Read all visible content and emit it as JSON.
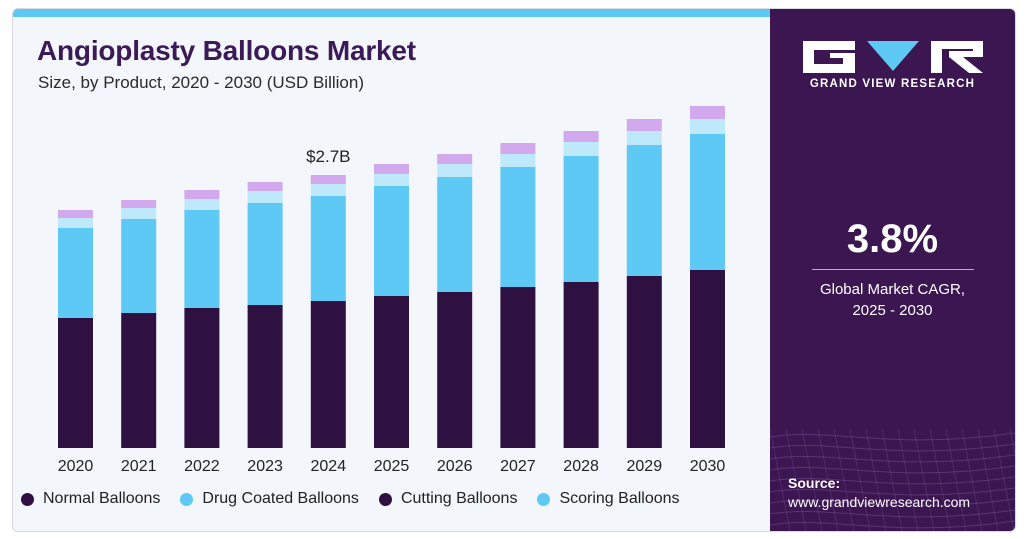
{
  "header": {
    "title": "Angioplasty Balloons Market",
    "subtitle": "Size, by Product, 2020 - 2030 (USD Billion)"
  },
  "brand": {
    "name": "GRAND VIEW RESEARCH"
  },
  "stat": {
    "value": "3.8%",
    "label_line1": "Global Market CAGR,",
    "label_line2": "2025 - 2030"
  },
  "source": {
    "label": "Source:",
    "url": "www.grandviewresearch.com"
  },
  "colors": {
    "normal": "#2e1141",
    "drug_coated": "#5ec9f4",
    "cutting": "#bde9fa",
    "scoring": "#d2a9ec",
    "sidebar": "#3b1650",
    "title": "#3a1a57"
  },
  "chart_data": {
    "type": "bar",
    "stacked": true,
    "title": "Angioplasty Balloons Market",
    "subtitle": "Size, by Product, 2020 - 2030 (USD Billion)",
    "categories": [
      "2020",
      "2021",
      "2022",
      "2023",
      "2024",
      "2025",
      "2026",
      "2027",
      "2028",
      "2029",
      "2030"
    ],
    "series": [
      {
        "name": "Normal Balloons",
        "color": "#2e1141",
        "values": [
          1.3,
          1.35,
          1.4,
          1.43,
          1.47,
          1.52,
          1.56,
          1.61,
          1.66,
          1.72,
          1.78
        ]
      },
      {
        "name": "Drug Coated Balloons",
        "color": "#5ec9f4",
        "values": [
          0.9,
          0.94,
          0.98,
          1.02,
          1.05,
          1.1,
          1.15,
          1.2,
          1.26,
          1.31,
          1.36
        ]
      },
      {
        "name": "Cutting Balloons",
        "color": "#bde9fa",
        "values": [
          0.1,
          0.11,
          0.11,
          0.12,
          0.12,
          0.12,
          0.13,
          0.13,
          0.14,
          0.14,
          0.15
        ]
      },
      {
        "name": "Scoring Balloons",
        "color": "#d2a9ec",
        "values": [
          0.08,
          0.08,
          0.09,
          0.09,
          0.09,
          0.1,
          0.1,
          0.11,
          0.11,
          0.12,
          0.13
        ]
      }
    ],
    "annotations": [
      {
        "category": "2024",
        "text": "$2.7B"
      }
    ],
    "legend_labels": [
      "Normal Balloons",
      "Drug Coated Balloons",
      "Cutting Balloons",
      "Scoring Balloons"
    ],
    "ylim": [
      0,
      3.4
    ],
    "grid": false,
    "legend_position": "bottom"
  }
}
